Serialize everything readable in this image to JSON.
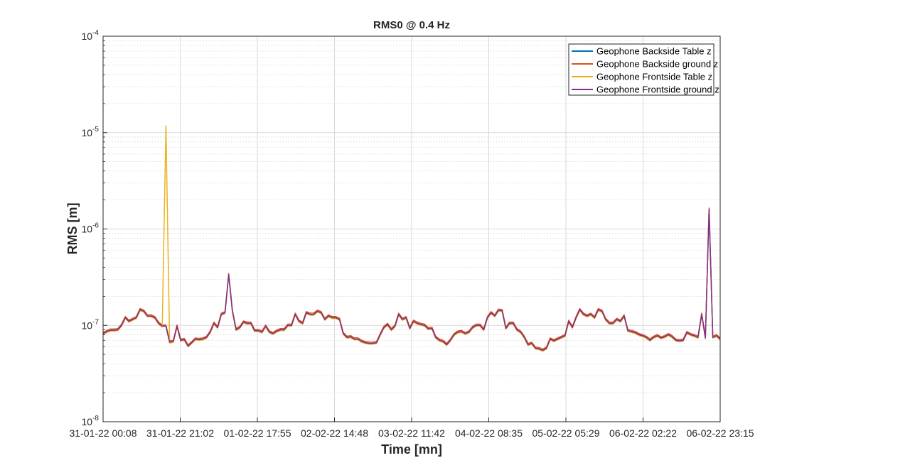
{
  "chart_data": {
    "type": "line",
    "title": "RMS0 @ 0.4 Hz",
    "xlabel": "Time [mn]",
    "ylabel": "RMS [m]",
    "yscale": "log",
    "ylim": [
      1e-08,
      0.0001
    ],
    "xlim": [
      0,
      8
    ],
    "grid": true,
    "legend_position": "top-right",
    "y_ticks": [
      {
        "base": "10",
        "exp": "-8"
      },
      {
        "base": "10",
        "exp": "-7"
      },
      {
        "base": "10",
        "exp": "-6"
      },
      {
        "base": "10",
        "exp": "-5"
      },
      {
        "base": "10",
        "exp": "-4"
      }
    ],
    "x_tick_labels": [
      "31-01-22 00:08",
      "31-01-22 21:02",
      "01-02-22 17:55",
      "02-02-22 14:48",
      "03-02-22 11:42",
      "04-02-22 08:35",
      "05-02-22 05:29",
      "06-02-22 02:22",
      "06-02-22 23:15"
    ],
    "series": [
      {
        "name": "Geophone Backside Table z",
        "color": "#0072BD"
      },
      {
        "name": "Geophone Backside ground z",
        "color": "#D95319"
      },
      {
        "name": "Geophone Frontside Table z",
        "color": "#EDB120"
      },
      {
        "name": "Geophone Frontside ground z",
        "color": "#7E2F8E"
      }
    ],
    "base_values": [
      8.2e-08,
      8.6e-08,
      8.9e-08,
      8.9e-08,
      9e-08,
      1e-07,
      1.2e-07,
      1.1e-07,
      1.15e-07,
      1.2e-07,
      1.45e-07,
      1.4e-07,
      1.25e-07,
      1.25e-07,
      1.2e-07,
      1.05e-07,
      9.8e-08,
      9.8e-08,
      6.7e-08,
      6.8e-08,
      9.8e-08,
      7e-08,
      7.1e-08,
      6.1e-08,
      6.6e-08,
      7.2e-08,
      7.1e-08,
      7.2e-08,
      7.5e-08,
      8.5e-08,
      1.05e-07,
      9.5e-08,
      1.3e-07,
      1.35e-07,
      3.35e-07,
      1.4e-07,
      9e-08,
      9.5e-08,
      1.08e-07,
      1.05e-07,
      1.05e-07,
      8.8e-08,
      8.8e-08,
      8.5e-08,
      9.8e-08,
      8.5e-08,
      8.2e-08,
      8.7e-08,
      9e-08,
      9e-08,
      1e-07,
      1e-07,
      1.3e-07,
      1.1e-07,
      1.05e-07,
      1.35e-07,
      1.3e-07,
      1.3e-07,
      1.4e-07,
      1.35e-07,
      1.15e-07,
      1.25e-07,
      1.2e-07,
      1.2e-07,
      1.15e-07,
      8.2e-08,
      7.5e-08,
      7.6e-08,
      7.2e-08,
      7.2e-08,
      6.8e-08,
      6.6e-08,
      6.5e-08,
      6.5e-08,
      6.6e-08,
      8e-08,
      9.5e-08,
      1.02e-07,
      9e-08,
      9.8e-08,
      1.3e-07,
      1.15e-07,
      1.2e-07,
      9.3e-08,
      1.1e-07,
      1.05e-07,
      1.02e-07,
      1e-07,
      9.2e-08,
      9.3e-08,
      7.5e-08,
      7e-08,
      6.8e-08,
      6.3e-08,
      7e-08,
      8e-08,
      8.5e-08,
      8.6e-08,
      8.2e-08,
      8.5e-08,
      9.5e-08,
      1e-07,
      1e-07,
      9e-08,
      1.2e-07,
      1.35e-07,
      1.25e-07,
      1.43e-07,
      1.42e-07,
      9.3e-08,
      1.05e-07,
      1.05e-07,
      9e-08,
      8.5e-08,
      7.5e-08,
      6.3e-08,
      6.5e-08,
      5.8e-08,
      5.7e-08,
      5.5e-08,
      5.8e-08,
      7.2e-08,
      6.9e-08,
      7.2e-08,
      7.5e-08,
      7.8e-08,
      1.1e-07,
      9.5e-08,
      1.2e-07,
      1.45e-07,
      1.3e-07,
      1.25e-07,
      1.3e-07,
      1.2e-07,
      1.45e-07,
      1.4e-07,
      1.15e-07,
      1.05e-07,
      1.05e-07,
      1.15e-07,
      1.1e-07,
      1.25e-07,
      8.8e-08,
      8.6e-08,
      8.4e-08,
      8e-08,
      7.8e-08,
      7.5e-08,
      7e-08,
      7.5e-08,
      7.8e-08,
      7.4e-08,
      7.6e-08,
      8e-08,
      7.6e-08,
      7e-08,
      6.9e-08,
      7e-08,
      8.4e-08,
      8e-08,
      7.8e-08,
      7.5e-08,
      1.3e-07,
      7.4e-08,
      1.6e-06,
      7.5e-08,
      7.8e-08,
      7.2e-08
    ],
    "series_offsets": [
      1.0,
      1.03,
      0.98,
      1.0
    ],
    "spikes": [
      {
        "series": 2,
        "index": 17,
        "value": 1.18e-05
      }
    ]
  }
}
